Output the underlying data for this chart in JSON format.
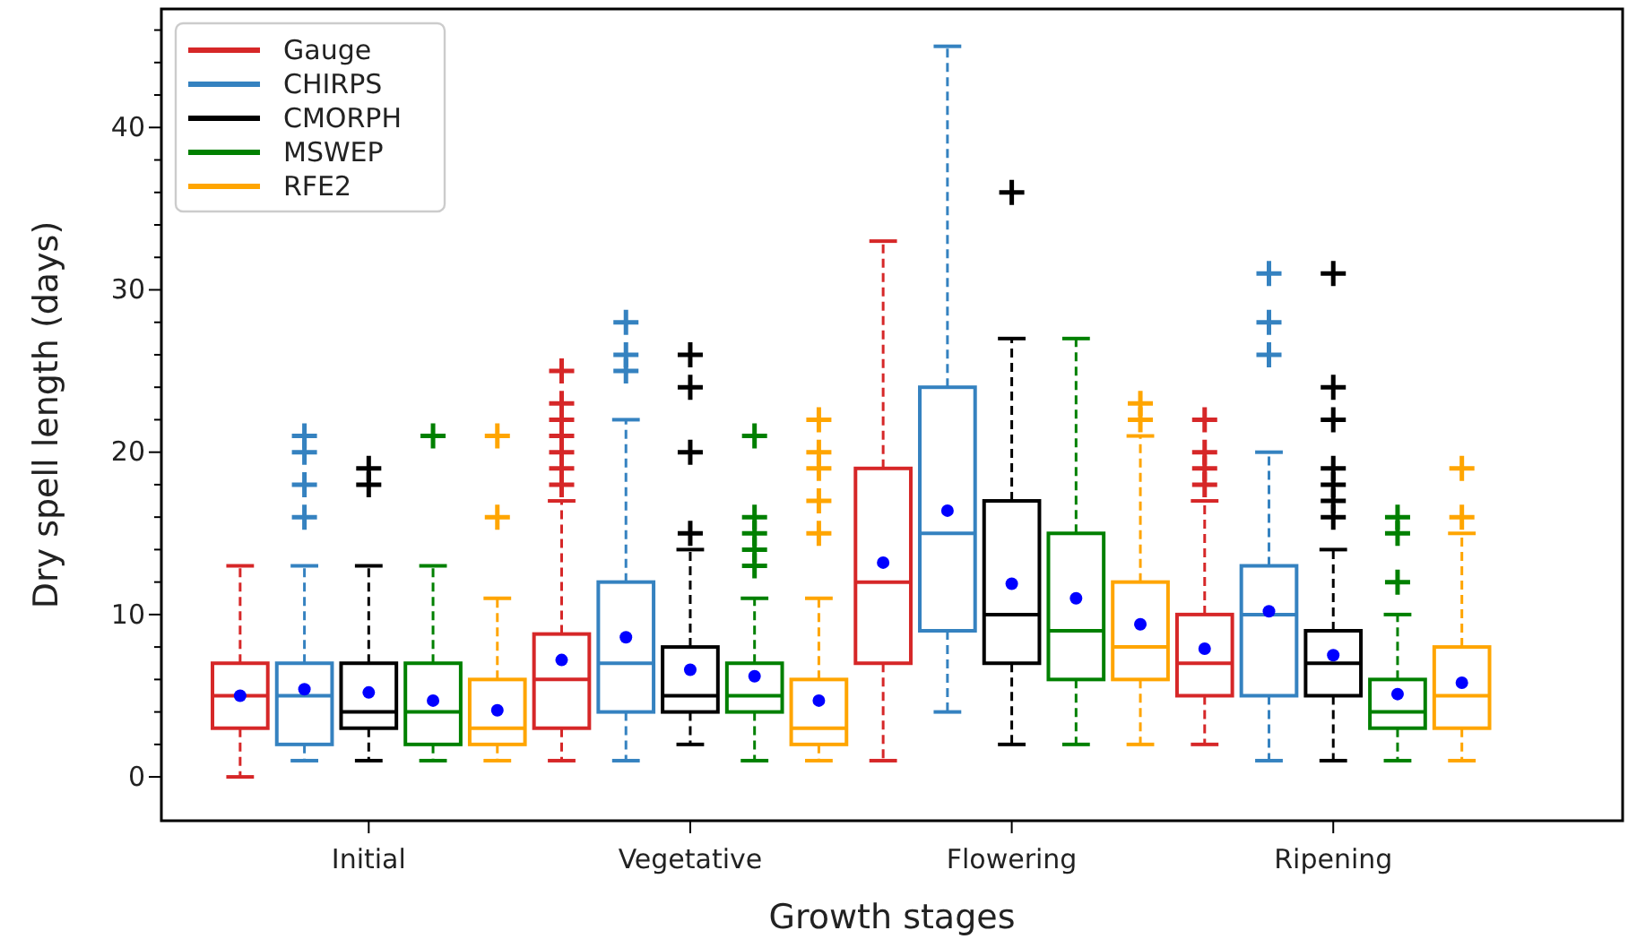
{
  "chart_data": {
    "type": "box",
    "xlabel": "Growth stages",
    "ylabel": "Dry spell length (days)",
    "categories": [
      "Initial",
      "Vegetative",
      "Flowering",
      "Ripening"
    ],
    "ylim": [
      -2.7,
      47.3
    ],
    "yticks": [
      0,
      {
        "value": 2,
        "label": null
      },
      {
        "value": 4,
        "label": null
      },
      {
        "value": 6,
        "label": null
      },
      {
        "value": 8,
        "label": null
      },
      10,
      {
        "value": 12,
        "label": null
      },
      {
        "value": 14,
        "label": null
      },
      {
        "value": 16,
        "label": null
      },
      {
        "value": 18,
        "label": null
      },
      20,
      {
        "value": 22,
        "label": null
      },
      {
        "value": 24,
        "label": null
      },
      {
        "value": 26,
        "label": null
      },
      {
        "value": 28,
        "label": null
      },
      30,
      {
        "value": 32,
        "label": null
      },
      {
        "value": 34,
        "label": null
      },
      {
        "value": 36,
        "label": null
      },
      {
        "value": 38,
        "label": null
      },
      40,
      {
        "value": 42,
        "label": null
      },
      {
        "value": 44,
        "label": null
      },
      {
        "value": 46,
        "label": null
      }
    ],
    "legend": "top left",
    "grid": false,
    "series": [
      {
        "name": "Gauge",
        "color": "#d62728",
        "boxes": [
          {
            "low": 0,
            "q1": 3,
            "median": 5,
            "q3": 7,
            "high": 13,
            "mean": 5
          },
          {
            "low": 1,
            "q1": 3,
            "median": 6,
            "q3": 8.8,
            "high": 17,
            "mean": 7.2,
            "outliers": [
              18,
              19,
              20,
              21,
              22,
              23,
              25
            ]
          },
          {
            "low": 1,
            "q1": 7,
            "median": 12,
            "q3": 19,
            "high": 33,
            "mean": 13.2
          },
          {
            "low": 2,
            "q1": 5,
            "median": 7,
            "q3": 10,
            "high": 17,
            "mean": 7.9,
            "outliers": [
              18,
              19,
              20,
              22
            ]
          }
        ]
      },
      {
        "name": "CHIRPS",
        "color": "#3582c0",
        "boxes": [
          {
            "low": 1,
            "q1": 2,
            "median": 5,
            "q3": 7,
            "high": 13,
            "mean": 5.4,
            "outliers": [
              16,
              18,
              20,
              21
            ]
          },
          {
            "low": 1,
            "q1": 4,
            "median": 7,
            "q3": 12,
            "high": 22,
            "mean": 8.6,
            "outliers": [
              25,
              26,
              28
            ]
          },
          {
            "low": 4,
            "q1": 9,
            "median": 15,
            "q3": 24,
            "high": 45,
            "mean": 16.4
          },
          {
            "low": 1,
            "q1": 5,
            "median": 10,
            "q3": 13,
            "high": 20,
            "mean": 10.2,
            "outliers": [
              26,
              28,
              31
            ]
          }
        ]
      },
      {
        "name": "CMORPH",
        "color": "#000000",
        "boxes": [
          {
            "low": 1,
            "q1": 3,
            "median": 4,
            "q3": 7,
            "high": 13,
            "mean": 5.2,
            "outliers": [
              18,
              19
            ]
          },
          {
            "low": 2,
            "q1": 4,
            "median": 5,
            "q3": 8,
            "high": 14,
            "mean": 6.6,
            "outliers": [
              15,
              20,
              24,
              26
            ]
          },
          {
            "low": 2,
            "q1": 7,
            "median": 10,
            "q3": 17,
            "high": 27,
            "mean": 11.9,
            "outliers": [
              36
            ]
          },
          {
            "low": 1,
            "q1": 5,
            "median": 7,
            "q3": 9,
            "high": 14,
            "mean": 7.5,
            "outliers": [
              16,
              17,
              18,
              19,
              22,
              24,
              31
            ]
          }
        ]
      },
      {
        "name": "MSWEP",
        "color": "#008000",
        "boxes": [
          {
            "low": 1,
            "q1": 2,
            "median": 4,
            "q3": 7,
            "high": 13,
            "mean": 4.7,
            "outliers": [
              21
            ]
          },
          {
            "low": 1,
            "q1": 4,
            "median": 5,
            "q3": 7,
            "high": 11,
            "mean": 6.2,
            "outliers": [
              13,
              14,
              15,
              16,
              21
            ]
          },
          {
            "low": 2,
            "q1": 6,
            "median": 9,
            "q3": 15,
            "high": 27,
            "mean": 11
          },
          {
            "low": 1,
            "q1": 3,
            "median": 4,
            "q3": 6,
            "high": 10,
            "mean": 5.1,
            "outliers": [
              12,
              15,
              16
            ]
          }
        ]
      },
      {
        "name": "RFE2",
        "color": "#ffa500",
        "boxes": [
          {
            "low": 1,
            "q1": 2,
            "median": 3,
            "q3": 6,
            "high": 11,
            "mean": 4.1,
            "outliers": [
              16,
              21
            ]
          },
          {
            "low": 1,
            "q1": 2,
            "median": 3,
            "q3": 6,
            "high": 11,
            "mean": 4.7,
            "outliers": [
              15,
              17,
              19,
              20,
              22
            ]
          },
          {
            "low": 2,
            "q1": 6,
            "median": 8,
            "q3": 12,
            "high": 21,
            "mean": 9.4,
            "outliers": [
              22,
              23
            ]
          },
          {
            "low": 1,
            "q1": 3,
            "median": 5,
            "q3": 8,
            "high": 15,
            "mean": 5.8,
            "outliers": [
              16,
              19
            ]
          }
        ]
      }
    ]
  }
}
